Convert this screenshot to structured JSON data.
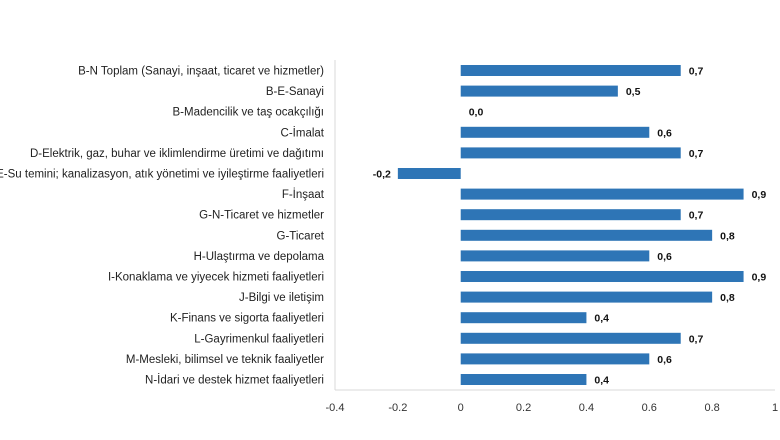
{
  "colors": {
    "bar": "#2E75B6",
    "axis": "#d9d9d9"
  },
  "chart_data": {
    "type": "bar",
    "orientation": "horizontal",
    "categories": [
      "B-N Toplam (Sanayi, inşaat, ticaret ve hizmetler)",
      "B-E-Sanayi",
      "B-Madencilik ve taş ocakçılığı",
      "C-İmalat",
      "D-Elektrik, gaz, buhar ve iklimlendirme üretimi ve dağıtımı",
      "E-Su temini; kanalizasyon, atık yönetimi ve iyileştirme faaliyetleri",
      "F-İnşaat",
      "G-N-Ticaret ve hizmetler",
      "G-Ticaret",
      "H-Ulaştırma ve depolama",
      "I-Konaklama ve yiyecek hizmeti faaliyetleri",
      "J-Bilgi ve iletişim",
      "K-Finans ve sigorta faaliyetleri",
      "L-Gayrimenkul faaliyetleri",
      "M-Mesleki, bilimsel ve teknik faaliyetler",
      "N-İdari ve destek hizmet faaliyetleri"
    ],
    "values": [
      0.7,
      0.5,
      0.0,
      0.6,
      0.7,
      -0.2,
      0.9,
      0.7,
      0.8,
      0.6,
      0.9,
      0.8,
      0.4,
      0.7,
      0.6,
      0.4
    ],
    "value_labels": [
      "0,7",
      "0,5",
      "0,0",
      "0,6",
      "0,7",
      "-0,2",
      "0,9",
      "0,7",
      "0,8",
      "0,6",
      "0,9",
      "0,8",
      "0,4",
      "0,7",
      "0,6",
      "0,4"
    ],
    "xlim": [
      -0.4,
      1
    ],
    "xticks": [
      -0.4,
      -0.2,
      0,
      0.2,
      0.4,
      0.6,
      0.8,
      1
    ],
    "xtick_labels": [
      "-0.4",
      "-0.2",
      "0",
      "0.2",
      "0.4",
      "0.6",
      "0.8",
      "1"
    ],
    "grid": false,
    "legend": false
  }
}
